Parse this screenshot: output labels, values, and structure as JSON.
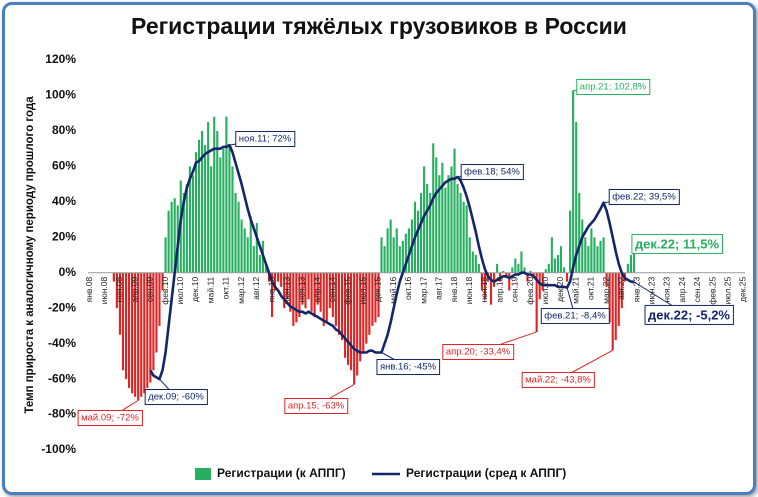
{
  "chart_data": {
    "type": "bar-line",
    "title": "Регистрации тяжёлых грузовиков в России",
    "y_label": "Темп прироста к аналогичному периоду прошлого года",
    "ylim": [
      -100,
      120
    ],
    "yticks": [
      {
        "value": -100,
        "label": "-100%"
      },
      {
        "value": -80,
        "label": "-80%"
      },
      {
        "value": -60,
        "label": "-60%"
      },
      {
        "value": -40,
        "label": "-40%"
      },
      {
        "value": -20,
        "label": "-20%"
      },
      {
        "value": 0,
        "label": "0%"
      },
      {
        "value": 20,
        "label": "20%"
      },
      {
        "value": 40,
        "label": "40%"
      },
      {
        "value": 60,
        "label": "60%"
      },
      {
        "value": 80,
        "label": "80%"
      },
      {
        "value": 100,
        "label": "100%"
      },
      {
        "value": 120,
        "label": "120%"
      }
    ],
    "grid": false,
    "legend": "bottom",
    "categories": [
      "янв.08",
      null,
      null,
      null,
      null,
      "июн.08",
      null,
      null,
      null,
      null,
      "ноя.08",
      null,
      null,
      null,
      null,
      "апр.09",
      null,
      null,
      null,
      null,
      "сен.09",
      null,
      null,
      null,
      null,
      "фев.10",
      null,
      null,
      null,
      null,
      "июл.10",
      null,
      null,
      null,
      null,
      "дек.10",
      null,
      null,
      null,
      null,
      "май.11",
      null,
      null,
      null,
      null,
      "окт.11",
      null,
      null,
      null,
      null,
      "мар.12",
      null,
      null,
      null,
      null,
      "авг.12",
      null,
      null,
      null,
      null,
      "янв.13",
      null,
      null,
      null,
      null,
      "июн.13",
      null,
      null,
      null,
      null,
      "ноя.13",
      null,
      null,
      null,
      null,
      "апр.14",
      null,
      null,
      null,
      null,
      "сен.14",
      null,
      null,
      null,
      null,
      "фев.15",
      null,
      null,
      null,
      null,
      "июл.15",
      null,
      null,
      null,
      null,
      "дек.15",
      null,
      null,
      null,
      null,
      "май.16",
      null,
      null,
      null,
      null,
      "окт.16",
      null,
      null,
      null,
      null,
      "мар.17",
      null,
      null,
      null,
      null,
      "авг.17",
      null,
      null,
      null,
      null,
      "янв.18",
      null,
      null,
      null,
      null,
      "июн.18",
      null,
      null,
      null,
      null,
      "ноя.18",
      null,
      null,
      null,
      null,
      "апр.19",
      null,
      null,
      null,
      null,
      "сен.19",
      null,
      null,
      null,
      null,
      "фев.20",
      null,
      null,
      null,
      null,
      "июл.20",
      null,
      null,
      null,
      null,
      "дек.20",
      null,
      null,
      null,
      null,
      "май.21",
      null,
      null,
      null,
      null,
      "окт.21",
      null,
      null,
      null,
      null,
      "мар.22",
      null,
      null,
      null,
      null,
      "авг.22",
      null,
      null,
      null,
      null,
      "янв.23",
      null,
      null,
      null,
      null,
      "июн.23",
      null,
      null,
      null,
      null,
      "ноя.23",
      null,
      null,
      null,
      null,
      "апр.24",
      null,
      null,
      null,
      null,
      "сен.24",
      null,
      null,
      null,
      null,
      "фев.25",
      null,
      null,
      null,
      null,
      "июл.25",
      null,
      null,
      null,
      null,
      "дек.25"
    ],
    "series": [
      {
        "name": "Регистрации (к АППГ)",
        "type": "bar",
        "positive_color": "#27ae60",
        "negative_color": "#e02424",
        "values": [
          null,
          null,
          null,
          null,
          null,
          null,
          null,
          null,
          -5,
          -20,
          -35,
          -55,
          -60,
          -65,
          -68,
          -70,
          -72,
          -70,
          -68,
          -65,
          -62,
          -55,
          -45,
          -30,
          -10,
          20,
          35,
          40,
          42,
          38,
          52,
          45,
          50,
          60,
          55,
          68,
          75,
          80,
          72,
          85,
          60,
          88,
          80,
          65,
          70,
          88,
          72,
          60,
          45,
          40,
          30,
          25,
          20,
          32,
          15,
          28,
          10,
          18,
          5,
          -5,
          -25,
          -10,
          -5,
          -8,
          -20,
          -15,
          -22,
          -30,
          -28,
          -25,
          -18,
          -20,
          -15,
          -22,
          -25,
          -18,
          -22,
          -30,
          -28,
          -20,
          -25,
          -30,
          -35,
          -38,
          -48,
          -52,
          -55,
          -63,
          -58,
          -50,
          -45,
          -40,
          -35,
          -30,
          -28,
          -25,
          20,
          15,
          25,
          30,
          20,
          25,
          15,
          18,
          22,
          25,
          30,
          40,
          35,
          45,
          60,
          50,
          45,
          73,
          65,
          55,
          62,
          48,
          55,
          60,
          70,
          50,
          45,
          40,
          38,
          20,
          12,
          10,
          5,
          -10,
          -15,
          -5,
          -18,
          -8,
          5,
          -5,
          1,
          -3,
          -10,
          3,
          8,
          5,
          12,
          3,
          -5,
          1,
          -3,
          -33.4,
          -15,
          -10,
          2,
          5,
          20,
          8,
          10,
          15,
          3,
          -5,
          35,
          102.8,
          85,
          45,
          30,
          20,
          15,
          25,
          20,
          15,
          18,
          20,
          -8,
          -28,
          -43.8,
          -38,
          -30,
          -20,
          -5,
          5,
          10,
          11.5,
          null,
          null,
          null,
          null,
          null,
          null,
          null,
          null,
          null,
          null,
          null,
          null,
          null,
          null,
          null,
          null,
          null,
          null,
          null,
          null,
          null,
          null,
          null,
          null,
          null,
          null,
          null,
          null,
          null,
          null,
          null,
          null,
          null,
          null,
          null,
          null
        ],
        "value_labels": [
          null,
          null,
          null,
          null,
          null,
          null,
          null,
          null,
          null,
          null,
          null,
          null,
          null,
          null,
          null,
          null,
          "май.09; -72%",
          null,
          null,
          null,
          null,
          null,
          null,
          null,
          null,
          null,
          null,
          null,
          null,
          null,
          null,
          null,
          null,
          null,
          null,
          null,
          null,
          null,
          null,
          null,
          null,
          null,
          null,
          null,
          null,
          null,
          null,
          null,
          null,
          null,
          null,
          null,
          null,
          null,
          null,
          null,
          null,
          null,
          null,
          null,
          null,
          null,
          null,
          null,
          null,
          null,
          null,
          null,
          null,
          null,
          null,
          null,
          null,
          null,
          null,
          null,
          null,
          null,
          null,
          null,
          null,
          null,
          null,
          null,
          null,
          null,
          null,
          "апр.15; -63%",
          null,
          null,
          null,
          null,
          null,
          null,
          null,
          null,
          null,
          null,
          null,
          null,
          null,
          null,
          null,
          null,
          null,
          null,
          null,
          null,
          null,
          null,
          null,
          null,
          null,
          null,
          null,
          null,
          null,
          null,
          null,
          null,
          null,
          null,
          null,
          null,
          null,
          null,
          null,
          null,
          null,
          null,
          null,
          null,
          null,
          null,
          null,
          null,
          null,
          null,
          null,
          null,
          null,
          null,
          null,
          null,
          null,
          null,
          null,
          "апр.20; -33,4%",
          null,
          null,
          null,
          null,
          null,
          null,
          null,
          null,
          null,
          null,
          null,
          "апр.21; 102,8%",
          null,
          null,
          null,
          null,
          null,
          null,
          null,
          null,
          null,
          null,
          null,
          null,
          "май.22; -43,8%",
          null,
          null,
          null,
          null,
          null,
          null,
          "дек.22; 11,5%",
          null,
          null,
          null,
          null,
          null,
          null,
          null,
          null,
          null,
          null,
          null,
          null,
          null,
          null,
          null,
          null,
          null,
          null,
          null,
          null,
          null,
          null,
          null,
          null,
          null,
          null,
          null,
          null,
          null,
          null,
          null,
          null,
          null,
          null,
          null,
          null
        ]
      },
      {
        "name": "Регистрации (сред к АППГ)",
        "type": "line",
        "color": "#13266b",
        "values": [
          null,
          null,
          null,
          null,
          null,
          null,
          null,
          null,
          null,
          null,
          null,
          null,
          null,
          null,
          null,
          null,
          null,
          null,
          null,
          null,
          -55,
          -58,
          -59,
          -60,
          -55,
          -45,
          -30,
          -15,
          0,
          15,
          30,
          40,
          48,
          53,
          57,
          62,
          63,
          65,
          67,
          68,
          69,
          70,
          70,
          70,
          71,
          71,
          72,
          68,
          62,
          56,
          50,
          43,
          36,
          30,
          25,
          20,
          15,
          10,
          5,
          0,
          -5,
          -8,
          -10,
          -13,
          -15,
          -17,
          -19,
          -20,
          -21,
          -22,
          -22,
          -23,
          -22,
          -23,
          -24,
          -25,
          -26,
          -27,
          -28,
          -29,
          -30,
          -32,
          -33,
          -35,
          -37,
          -39,
          -41,
          -43,
          -44,
          -45,
          -45,
          -45,
          -44,
          -44,
          -45,
          -45,
          -45,
          -40,
          -35,
          -28,
          -20,
          -12,
          -5,
          0,
          5,
          10,
          15,
          20,
          24,
          28,
          32,
          35,
          38,
          42,
          45,
          47,
          49,
          51,
          52,
          53,
          53,
          54,
          52,
          48,
          43,
          37,
          30,
          23,
          15,
          8,
          2,
          -2,
          -4,
          -5,
          -4,
          -3,
          -2,
          -2,
          -3,
          -2,
          -1,
          -1,
          0,
          0,
          -1,
          -1,
          -2,
          -4,
          -6,
          -7,
          -7,
          -7,
          -7,
          -7,
          -8,
          -8,
          -8,
          -8.4,
          -5,
          3,
          10,
          15,
          20,
          23,
          26,
          28,
          30,
          33,
          36,
          39.5,
          35,
          28,
          20,
          12,
          5,
          0,
          -3,
          -4,
          -5,
          -5.2,
          null,
          null,
          null,
          null,
          null,
          null,
          null,
          null,
          null,
          null,
          null,
          null,
          null,
          null,
          null,
          null,
          null,
          null,
          null,
          null,
          null,
          null,
          null,
          null,
          null,
          null,
          null,
          null,
          null,
          null,
          null,
          null,
          null,
          null,
          null,
          null
        ],
        "value_labels": [
          null,
          null,
          null,
          null,
          null,
          null,
          null,
          null,
          null,
          null,
          null,
          null,
          null,
          null,
          null,
          null,
          null,
          null,
          null,
          null,
          null,
          null,
          null,
          "дек.09; -60%",
          null,
          null,
          null,
          null,
          null,
          null,
          null,
          null,
          null,
          null,
          null,
          null,
          null,
          null,
          null,
          null,
          null,
          null,
          null,
          null,
          null,
          null,
          "ноя.11; 72%",
          null,
          null,
          null,
          null,
          null,
          null,
          null,
          null,
          null,
          null,
          null,
          null,
          null,
          null,
          null,
          null,
          null,
          null,
          null,
          null,
          null,
          null,
          null,
          null,
          null,
          null,
          null,
          null,
          null,
          null,
          null,
          null,
          null,
          null,
          null,
          null,
          null,
          null,
          null,
          null,
          null,
          null,
          null,
          null,
          null,
          null,
          null,
          null,
          null,
          "янв.16; -45%",
          null,
          null,
          null,
          null,
          null,
          null,
          null,
          null,
          null,
          null,
          null,
          null,
          null,
          null,
          null,
          null,
          null,
          null,
          null,
          null,
          null,
          null,
          null,
          null,
          "фев.18; 54%",
          null,
          null,
          null,
          null,
          null,
          null,
          null,
          null,
          null,
          null,
          null,
          null,
          null,
          null,
          null,
          null,
          null,
          null,
          null,
          null,
          null,
          null,
          null,
          null,
          null,
          null,
          null,
          null,
          null,
          null,
          null,
          null,
          null,
          null,
          null,
          "фев.21; -8,4%",
          null,
          null,
          null,
          null,
          null,
          null,
          null,
          null,
          null,
          null,
          null,
          "фев.22; 39,5%",
          null,
          null,
          null,
          null,
          null,
          null,
          null,
          null,
          null,
          "дек.22; -5,2%",
          null,
          null,
          null,
          null,
          null,
          null,
          null,
          null,
          null,
          null,
          null,
          null,
          null,
          null,
          null,
          null,
          null,
          null,
          null,
          null,
          null,
          null,
          null,
          null,
          null,
          null,
          null,
          null,
          null,
          null,
          null,
          null,
          null,
          null,
          null,
          null
        ]
      }
    ]
  }
}
